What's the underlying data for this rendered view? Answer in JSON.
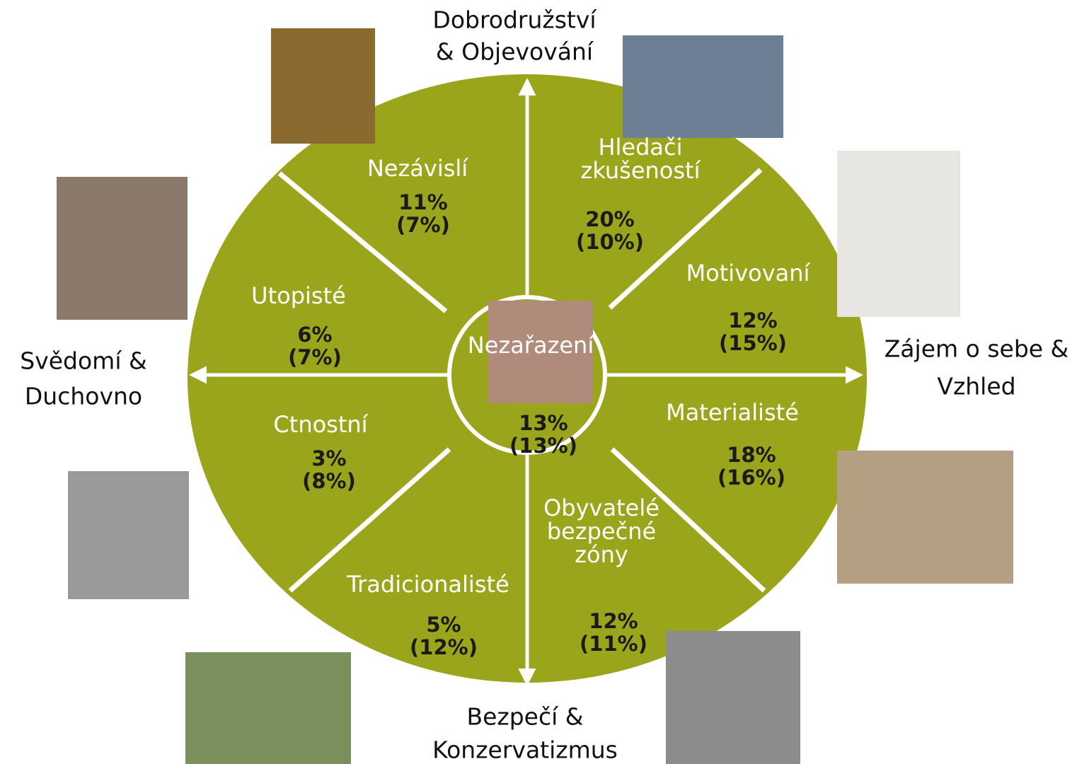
{
  "axes": {
    "top": [
      "Dobrodružství",
      "& Objevování"
    ],
    "right": [
      "Zájem o sebe &",
      "Vzhled"
    ],
    "bottom": [
      "Bezpečí &",
      "Konzervatizmus"
    ],
    "left": [
      "Svědomí &",
      "Duchovno"
    ]
  },
  "segments": [
    {
      "name": [
        "Nezávislí"
      ],
      "share": "11%",
      "base": "(7%)"
    },
    {
      "name": [
        "Hledači",
        "zkušeností"
      ],
      "share": "20%",
      "base": "(10%)"
    },
    {
      "name": [
        "Motivovaní"
      ],
      "share": "12%",
      "base": "(15%)"
    },
    {
      "name": [
        "Materialisté"
      ],
      "share": "18%",
      "base": "(16%)"
    },
    {
      "name": [
        "Obyvatelé",
        "bezpečné",
        "zóny"
      ],
      "share": "12%",
      "base": "(11%)"
    },
    {
      "name": [
        "Tradicionalisté"
      ],
      "share": "5%",
      "base": "(12%)"
    },
    {
      "name": [
        "Ctnostní"
      ],
      "share": "3%",
      "base": "(8%)"
    },
    {
      "name": [
        "Utopisté"
      ],
      "share": "6%",
      "base": "(7%)"
    }
  ],
  "center": {
    "name": "Nezařazení",
    "share": "13%",
    "base": "(13%)"
  }
}
